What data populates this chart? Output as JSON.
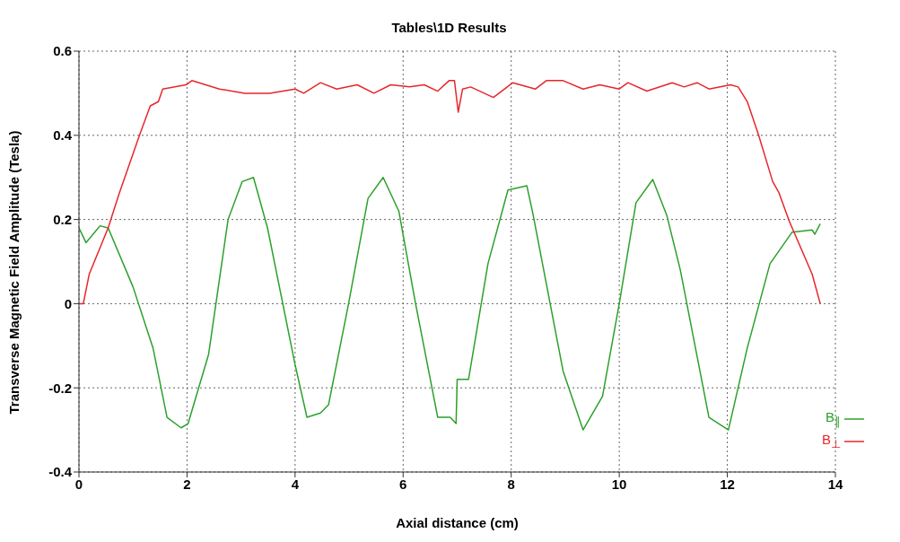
{
  "chart_data": {
    "type": "line",
    "title": "Tables\\1D Results",
    "xlabel": "Axial distance (cm)",
    "ylabel": "Transverse Magnetic Field Amplitude (Tesla)",
    "xlim": [
      0,
      14
    ],
    "xticks": [
      0,
      2,
      4,
      6,
      8,
      10,
      12,
      14
    ],
    "ylim": [
      -0.4,
      0.6
    ],
    "yticks": [
      -0.4,
      -0.2,
      0,
      0.2,
      0.4,
      0.6
    ],
    "grid": true,
    "legend": "bottom right",
    "marker": "none",
    "line_style": "solid",
    "series": [
      {
        "name": "B$_{∥}$",
        "color": "#2ca02c",
        "x": [
          0,
          0.13,
          0.39,
          0.54,
          1.0,
          1.37,
          1.63,
          1.89,
          2.02,
          2.4,
          2.76,
          3.02,
          3.23,
          3.49,
          4.0,
          4.22,
          4.47,
          4.62,
          4.99,
          5.35,
          5.63,
          5.92,
          6.23,
          6.64,
          6.87,
          6.98,
          7.0,
          7.21,
          7.57,
          7.94,
          8.29,
          8.4,
          8.96,
          9.33,
          9.69,
          10.0,
          10.31,
          10.62,
          10.88,
          11.13,
          11.66,
          12.02,
          12.37,
          12.79,
          13.2,
          13.57,
          13.62,
          13.72
        ],
        "values": [
          0.18,
          0.145,
          0.185,
          0.18,
          0.04,
          -0.105,
          -0.27,
          -0.295,
          -0.285,
          -0.12,
          0.2,
          0.29,
          0.3,
          0.18,
          -0.145,
          -0.27,
          -0.26,
          -0.24,
          0,
          0.25,
          0.3,
          0.22,
          0,
          -0.27,
          -0.27,
          -0.285,
          -0.18,
          -0.18,
          0.095,
          0.27,
          0.28,
          0.215,
          -0.16,
          -0.3,
          -0.22,
          0,
          0.24,
          0.295,
          0.21,
          0.08,
          -0.27,
          -0.3,
          -0.105,
          0.095,
          0.17,
          0.175,
          0.165,
          0.19
        ]
      },
      {
        "name": "B$_{⊥}$",
        "color": "#e8262a",
        "x": [
          0,
          0.08,
          0.19,
          0.54,
          0.74,
          1.12,
          1.32,
          1.47,
          1.55,
          1.98,
          2.09,
          2.6,
          3.07,
          3.53,
          4.0,
          4.16,
          4.47,
          4.77,
          5.15,
          5.46,
          5.77,
          6.12,
          6.39,
          6.64,
          6.85,
          6.95,
          7.02,
          7.1,
          7.25,
          7.67,
          8.03,
          8.45,
          8.65,
          8.96,
          9.33,
          9.64,
          10.0,
          10.16,
          10.51,
          10.98,
          11.2,
          11.44,
          11.66,
          12.06,
          12.2,
          12.37,
          12.58,
          12.84,
          12.95,
          13.15,
          13.57,
          13.72
        ],
        "values": [
          0,
          0,
          0.07,
          0.18,
          0.26,
          0.4,
          0.47,
          0.48,
          0.51,
          0.52,
          0.53,
          0.51,
          0.5,
          0.5,
          0.51,
          0.5,
          0.525,
          0.51,
          0.52,
          0.5,
          0.52,
          0.515,
          0.52,
          0.505,
          0.53,
          0.53,
          0.455,
          0.51,
          0.515,
          0.49,
          0.525,
          0.51,
          0.53,
          0.53,
          0.51,
          0.52,
          0.51,
          0.525,
          0.505,
          0.525,
          0.515,
          0.525,
          0.51,
          0.52,
          0.515,
          0.48,
          0.4,
          0.29,
          0.265,
          0.195,
          0.07,
          0
        ]
      }
    ]
  }
}
